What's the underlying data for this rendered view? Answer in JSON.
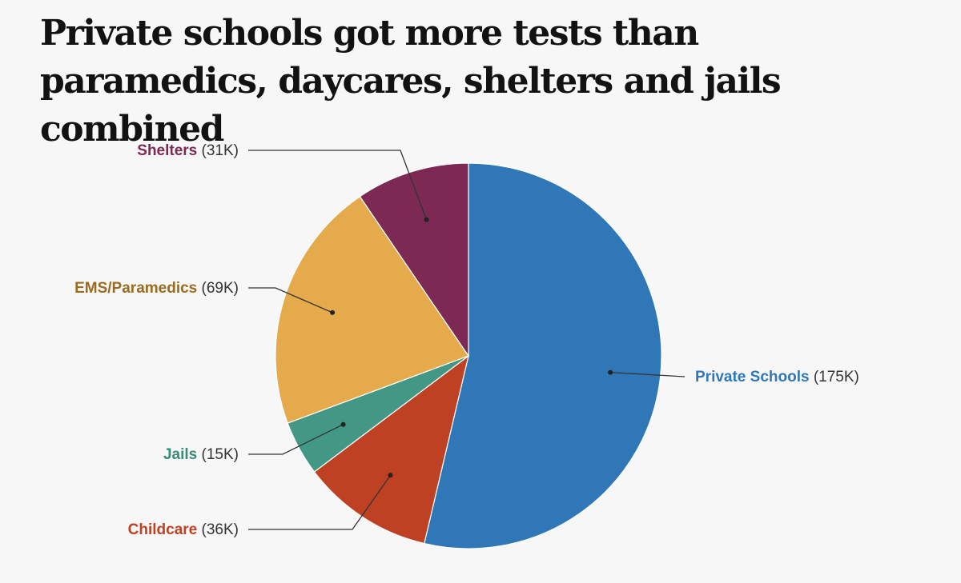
{
  "title": "Private schools got more tests than paramedics, daycares, shelters and jails combined",
  "chart_data": {
    "type": "pie",
    "title": "Private schools got more tests than paramedics, daycares, shelters and jails combined",
    "slices": [
      {
        "name": "Private Schools",
        "value_label": "(175K)",
        "value": 175,
        "color": "#2f77b6",
        "label_color": "#2f77b6",
        "label_side": "right"
      },
      {
        "name": "Childcare",
        "value_label": "(36K)",
        "value": 36,
        "color": "#bf4124",
        "label_color": "#bf4124",
        "label_side": "left"
      },
      {
        "name": "Jails",
        "value_label": "(15K)",
        "value": 15,
        "color": "#429785",
        "label_color": "#3a8a78",
        "label_side": "left"
      },
      {
        "name": "EMS/Paramedics",
        "value_label": "(69K)",
        "value": 69,
        "color": "#e4aa4b",
        "label_color": "#9a6c1f",
        "label_side": "left"
      },
      {
        "name": "Shelters",
        "value_label": "(31K)",
        "value": 31,
        "color": "#7c2953",
        "label_color": "#7c2953",
        "label_side": "left"
      }
    ]
  }
}
